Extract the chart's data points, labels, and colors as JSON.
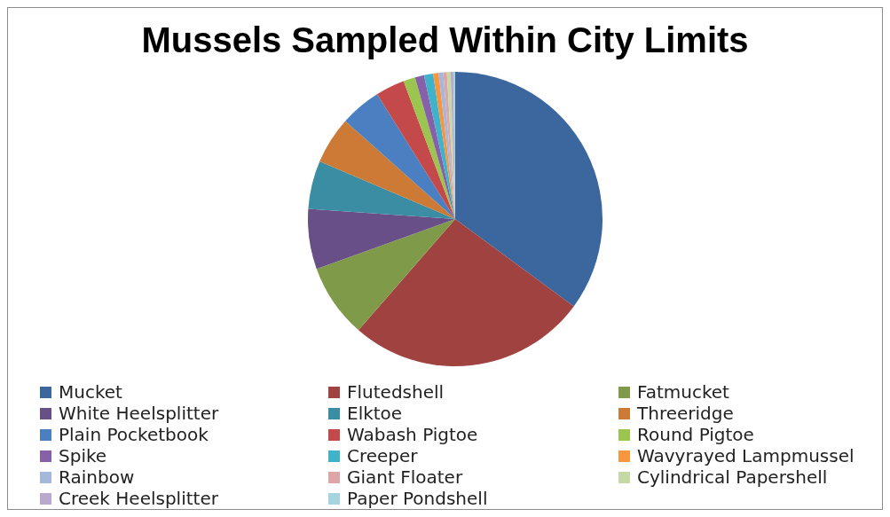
{
  "chart_data": {
    "type": "pie",
    "title": "Mussels Sampled Within City Limits",
    "categories": [
      "Mucket",
      "Flutedshell",
      "Fatmucket",
      "White Heelsplitter",
      "Elktoe",
      "Threeridge",
      "Plain Pocketbook",
      "Wabash Pigtoe",
      "Round Pigtoe",
      "Spike",
      "Creeper",
      "Wavyrayed Lampmussel",
      "Rainbow",
      "Giant Floater",
      "Cylindrical Papershell",
      "Creek Heelsplitter",
      "Paper Pondshell"
    ],
    "values": [
      35.1,
      26.3,
      8.1,
      6.6,
      5.3,
      5.2,
      4.5,
      3.2,
      1.3,
      1.0,
      1.0,
      0.6,
      0.5,
      0.4,
      0.4,
      0.3,
      0.2
    ],
    "colors": [
      "#3c679e",
      "#a0423f",
      "#7f9a48",
      "#694f87",
      "#3a8da3",
      "#cc7a35",
      "#4a7fc1",
      "#c4494a",
      "#9bc54f",
      "#8660a8",
      "#40b3cb",
      "#f7963f",
      "#a5b7dd",
      "#dda5a5",
      "#c5d9a5",
      "#b9a9cf",
      "#a5d4e0"
    ],
    "legend": "bottom"
  }
}
